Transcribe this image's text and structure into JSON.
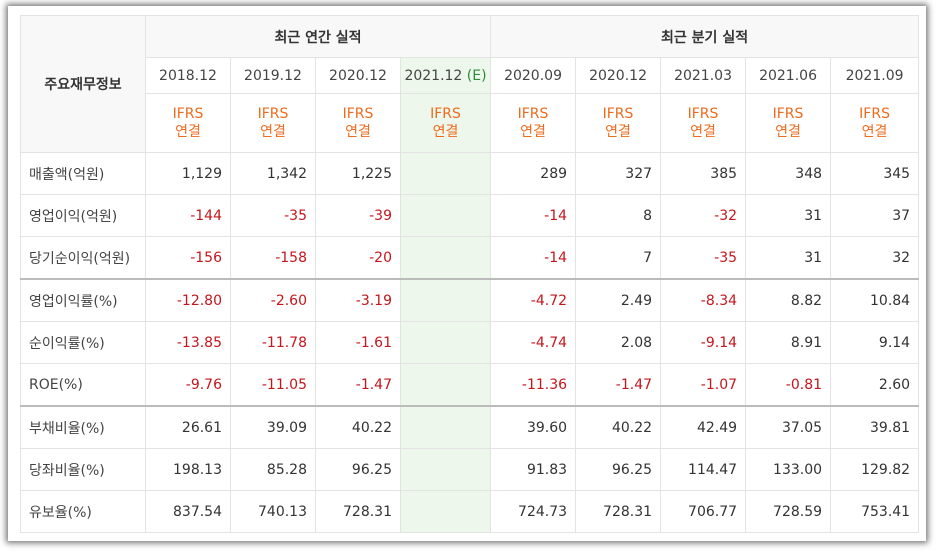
{
  "table": {
    "corner": "주요재무정보",
    "groups": [
      "최근 연간 실적",
      "최근 분기 실적"
    ],
    "annual_columns": [
      {
        "period": "2018.12",
        "basis": [
          "IFRS",
          "연결"
        ]
      },
      {
        "period": "2019.12",
        "basis": [
          "IFRS",
          "연결"
        ]
      },
      {
        "period": "2020.12",
        "basis": [
          "IFRS",
          "연결"
        ]
      }
    ],
    "estimate_column": {
      "period": "2021.12",
      "estimate": "(E)",
      "basis": [
        "IFRS",
        "연결"
      ]
    },
    "quarterly_columns": [
      {
        "period": "2020.09",
        "basis": [
          "IFRS",
          "연결"
        ]
      },
      {
        "period": "2020.12",
        "basis": [
          "IFRS",
          "연결"
        ]
      },
      {
        "period": "2021.03",
        "basis": [
          "IFRS",
          "연결"
        ]
      },
      {
        "period": "2021.06",
        "basis": [
          "IFRS",
          "연결"
        ]
      },
      {
        "period": "2021.09",
        "basis": [
          "IFRS",
          "연결"
        ]
      }
    ],
    "rows": [
      {
        "label": "매출액(억원)",
        "annual": [
          "1,129",
          "1,342",
          "1,225"
        ],
        "quarterly": [
          "289",
          "327",
          "385",
          "348",
          "345"
        ]
      },
      {
        "label": "영업이익(억원)",
        "annual": [
          "-144",
          "-35",
          "-39"
        ],
        "quarterly": [
          "-14",
          "8",
          "-32",
          "31",
          "37"
        ]
      },
      {
        "label": "당기순이익(억원)",
        "annual": [
          "-156",
          "-158",
          "-20"
        ],
        "quarterly": [
          "-14",
          "7",
          "-35",
          "31",
          "32"
        ]
      },
      {
        "label": "영업이익률(%)",
        "annual": [
          "-12.80",
          "-2.60",
          "-3.19"
        ],
        "quarterly": [
          "-4.72",
          "2.49",
          "-8.34",
          "8.82",
          "10.84"
        ]
      },
      {
        "label": "순이익률(%)",
        "annual": [
          "-13.85",
          "-11.78",
          "-1.61"
        ],
        "quarterly": [
          "-4.74",
          "2.08",
          "-9.14",
          "8.91",
          "9.14"
        ]
      },
      {
        "label": "ROE(%)",
        "annual": [
          "-9.76",
          "-11.05",
          "-1.47"
        ],
        "quarterly": [
          "-11.36",
          "-1.47",
          "-1.07",
          "-0.81",
          "2.60"
        ]
      },
      {
        "label": "부채비율(%)",
        "annual": [
          "26.61",
          "39.09",
          "40.22"
        ],
        "quarterly": [
          "39.60",
          "40.22",
          "42.49",
          "37.05",
          "39.81"
        ]
      },
      {
        "label": "당좌비율(%)",
        "annual": [
          "198.13",
          "85.28",
          "96.25"
        ],
        "quarterly": [
          "91.83",
          "96.25",
          "114.47",
          "133.00",
          "129.82"
        ]
      },
      {
        "label": "유보율(%)",
        "annual": [
          "837.54",
          "740.13",
          "728.31"
        ],
        "quarterly": [
          "724.73",
          "728.31",
          "706.77",
          "728.59",
          "753.41"
        ]
      }
    ]
  }
}
